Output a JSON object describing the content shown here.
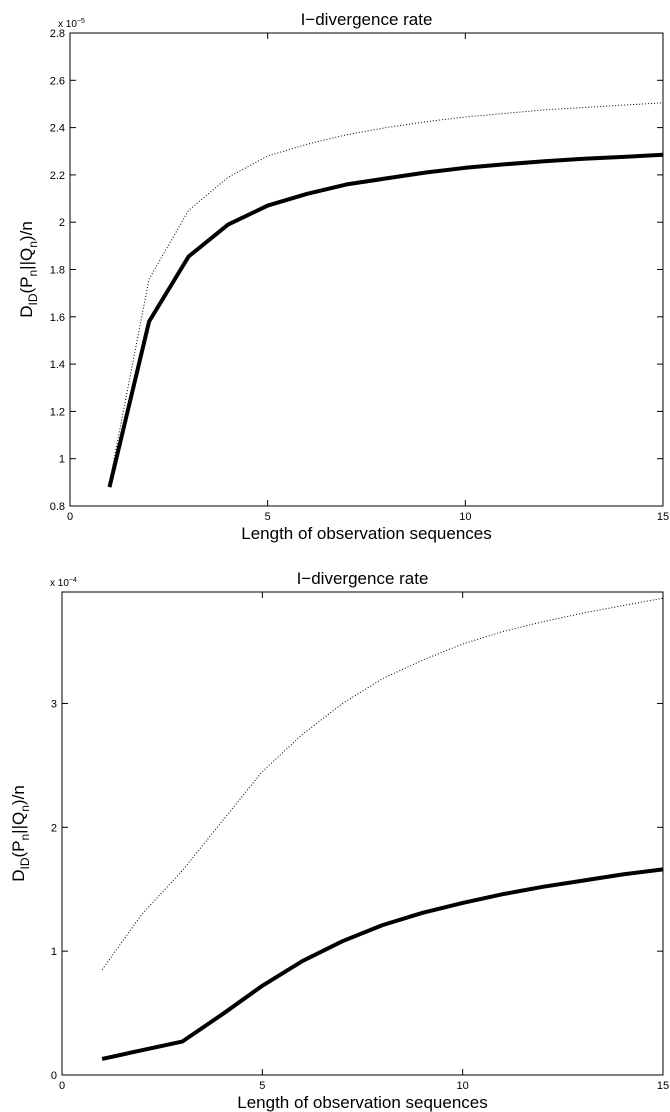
{
  "chart_data": [
    {
      "type": "line",
      "title": "I−divergence rate",
      "xlabel": "Length of observation sequences",
      "ylabel": {
        "d": "D",
        "sub_id": "ID",
        "open": "(P",
        "sub_n1": "n",
        "mid": "||Q",
        "sub_n2": "n",
        "close": ")/n"
      },
      "y_exponent": {
        "base": "x 10",
        "power": "−5"
      },
      "xlim": [
        0,
        15
      ],
      "ylim": [
        0.8,
        2.8
      ],
      "xticks": [
        0,
        5,
        10,
        15
      ],
      "xtick_labels": [
        "0",
        "5",
        "10",
        "15"
      ],
      "yticks": [
        0.8,
        1,
        1.2,
        1.4,
        1.6,
        1.8,
        2,
        2.2,
        2.4,
        2.6,
        2.8
      ],
      "ytick_labels": [
        "0.8",
        "1",
        "1.2",
        "1.4",
        "1.6",
        "1.8",
        "2",
        "2.2",
        "2.4",
        "2.6",
        "2.8"
      ],
      "grid": false,
      "series": [
        {
          "style": "dotted",
          "color": "#000000",
          "x": [
            1,
            2,
            3,
            4,
            5,
            6,
            7,
            8,
            9,
            10,
            11,
            12,
            13,
            14,
            15
          ],
          "values": [
            0.9,
            1.76,
            2.05,
            2.19,
            2.28,
            2.33,
            2.37,
            2.4,
            2.425,
            2.445,
            2.46,
            2.475,
            2.485,
            2.495,
            2.505
          ]
        },
        {
          "style": "solid-thick",
          "color": "#000000",
          "x": [
            1,
            2,
            3,
            4,
            5,
            6,
            7,
            8,
            9,
            10,
            11,
            12,
            13,
            14,
            15
          ],
          "values": [
            0.88,
            1.58,
            1.855,
            1.99,
            2.07,
            2.12,
            2.16,
            2.185,
            2.21,
            2.23,
            2.245,
            2.258,
            2.268,
            2.276,
            2.285
          ]
        }
      ]
    },
    {
      "type": "line",
      "title": "I−divergence rate",
      "xlabel": "Length of observation sequences",
      "ylabel": {
        "d": "D",
        "sub_id": "ID",
        "open": "(P",
        "sub_n1": "n",
        "mid": "||Q",
        "sub_n2": "n",
        "close": ")/n"
      },
      "y_exponent": {
        "base": "x 10",
        "power": "−4"
      },
      "xlim": [
        0,
        15
      ],
      "ylim": [
        0,
        3.9
      ],
      "xticks": [
        0,
        5,
        10,
        15
      ],
      "xtick_labels": [
        "0",
        "5",
        "10",
        "15"
      ],
      "yticks": [
        0,
        1,
        2,
        3
      ],
      "ytick_labels": [
        "0",
        "1",
        "2",
        "3"
      ],
      "grid": false,
      "series": [
        {
          "style": "dotted",
          "color": "#000000",
          "x": [
            1,
            2,
            3,
            4,
            5,
            6,
            7,
            8,
            9,
            10,
            11,
            12,
            13,
            14,
            15
          ],
          "values": [
            0.85,
            1.3,
            1.65,
            2.05,
            2.45,
            2.75,
            3.0,
            3.2,
            3.35,
            3.48,
            3.58,
            3.66,
            3.73,
            3.79,
            3.85
          ]
        },
        {
          "style": "solid-thick",
          "color": "#000000",
          "x": [
            1,
            2,
            3,
            4,
            5,
            6,
            7,
            8,
            9,
            10,
            11,
            12,
            13,
            14,
            15
          ],
          "values": [
            0.13,
            0.2,
            0.27,
            0.49,
            0.72,
            0.92,
            1.08,
            1.21,
            1.31,
            1.39,
            1.46,
            1.52,
            1.57,
            1.62,
            1.66
          ]
        }
      ]
    }
  ]
}
